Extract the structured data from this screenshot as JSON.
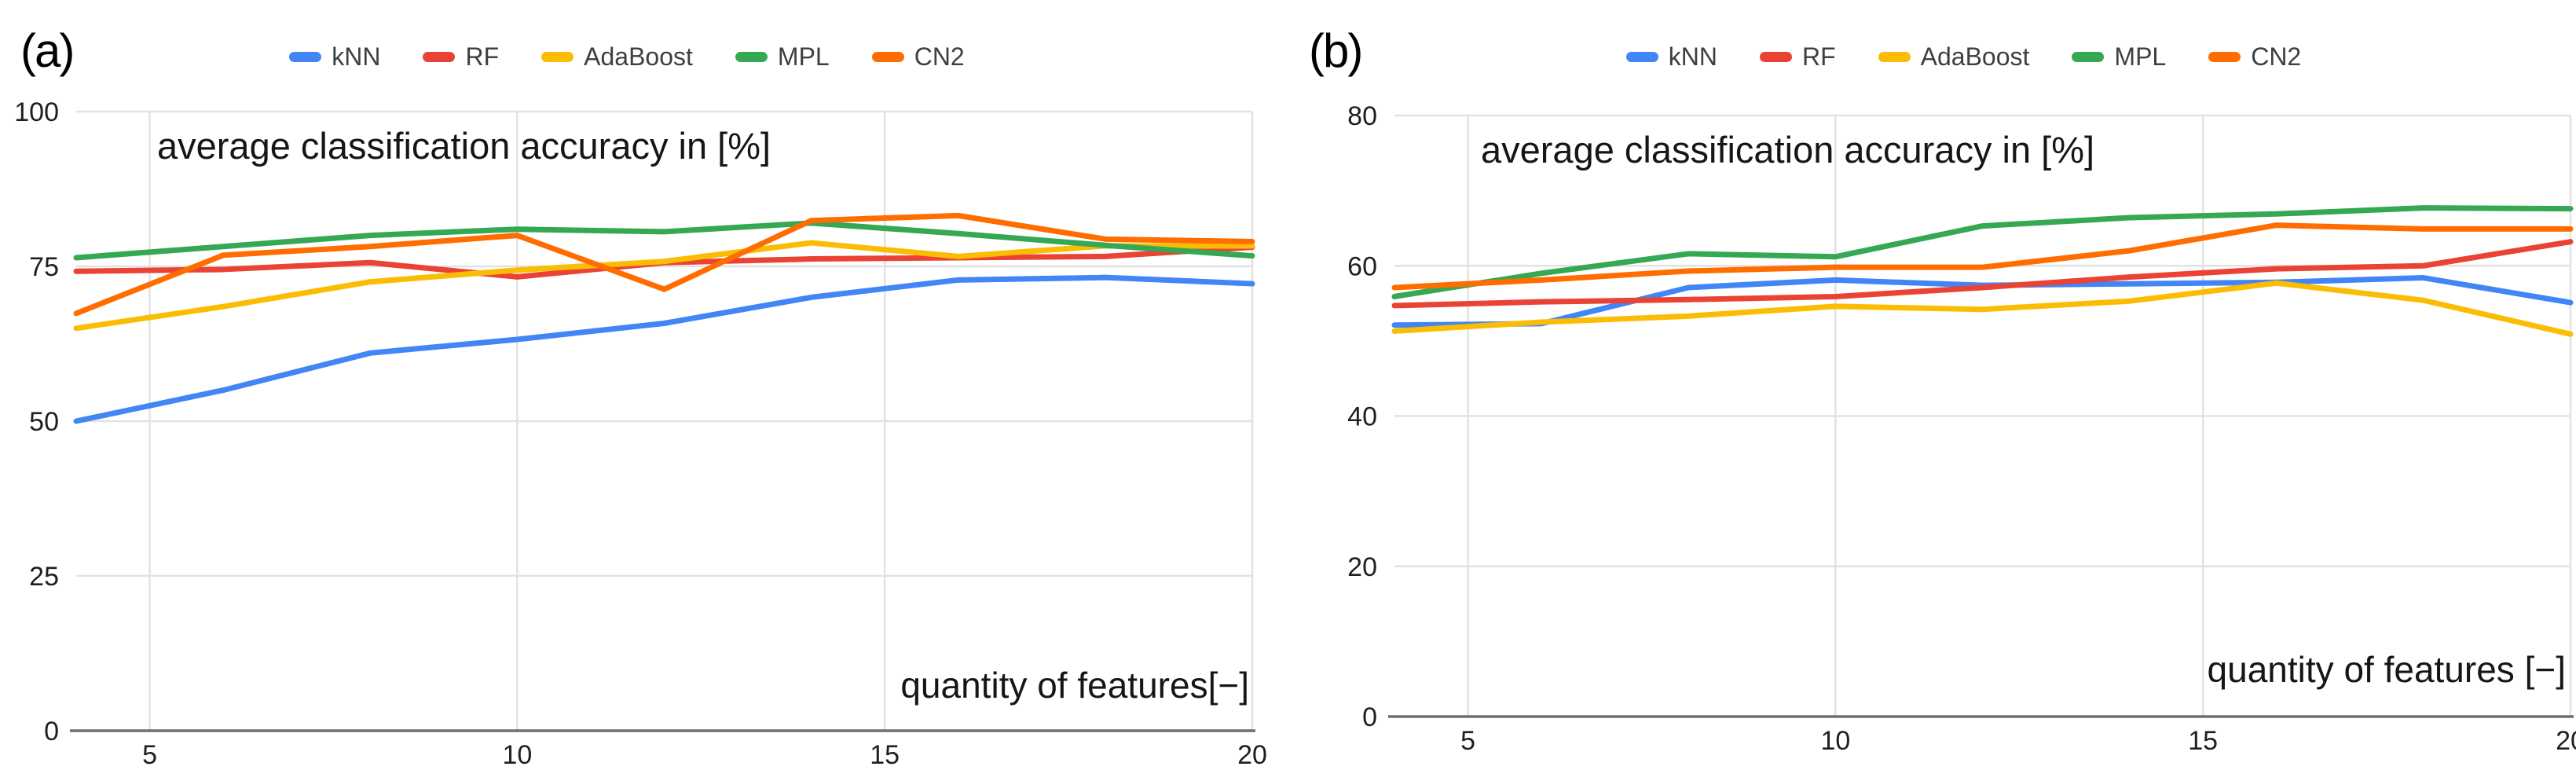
{
  "figure": {
    "background_color": "#ffffff",
    "gridline_color": "#e2e2e2",
    "baseline_color": "#6f6f6f",
    "tick_label_color": "#1f1f1f",
    "legend_text_color": "#3c4043",
    "title_text_color": "#161616"
  },
  "chart_data": [
    {
      "type": "line",
      "panel_label": "(a)",
      "title": "average classification accuracy in [%]",
      "xlabel": "quantity of features[−]",
      "ylabel": "",
      "xlim": [
        4,
        20
      ],
      "ylim": [
        0,
        100
      ],
      "x_ticks": [
        5,
        10,
        15,
        20
      ],
      "y_ticks": [
        0,
        25,
        50,
        75,
        100
      ],
      "grid": true,
      "legend_position": "top",
      "x": [
        4,
        6,
        8,
        10,
        12,
        14,
        16,
        18,
        20
      ],
      "series": [
        {
          "name": "kNN",
          "color": "#4285F4",
          "values": [
            50,
            55,
            61,
            63.2,
            65.8,
            70,
            72.8,
            73.2,
            72.2
          ]
        },
        {
          "name": "RF",
          "color": "#EA4335",
          "values": [
            74.2,
            74.5,
            75.6,
            73.3,
            75.6,
            76.2,
            76.4,
            76.6,
            78.1
          ]
        },
        {
          "name": "AdaBoost",
          "color": "#FBBC04",
          "values": [
            65,
            68.5,
            72.5,
            74.4,
            75.8,
            78.8,
            76.6,
            78.3,
            78.3
          ]
        },
        {
          "name": "MPL",
          "color": "#34A853",
          "values": [
            76.4,
            78.2,
            80,
            81,
            80.6,
            82,
            80.3,
            78.4,
            76.7
          ]
        },
        {
          "name": "CN2",
          "color": "#FF6D01",
          "values": [
            67.4,
            76.8,
            78.2,
            80,
            71.3,
            82.4,
            83.2,
            79.4,
            79
          ]
        }
      ]
    },
    {
      "type": "line",
      "panel_label": "(b)",
      "title": "average classification accuracy in [%]",
      "xlabel": "quantity of features [−]",
      "ylabel": "",
      "xlim": [
        4,
        20
      ],
      "ylim": [
        0,
        80
      ],
      "x_ticks": [
        5,
        10,
        15,
        20
      ],
      "y_ticks": [
        0,
        20,
        40,
        60,
        80
      ],
      "grid": true,
      "legend_position": "top",
      "x": [
        4,
        6,
        8,
        10,
        12,
        14,
        16,
        18,
        20
      ],
      "series": [
        {
          "name": "kNN",
          "color": "#4285F4",
          "values": [
            52.1,
            52.3,
            57.1,
            58.1,
            57.4,
            57.6,
            57.8,
            58.4,
            55.1
          ]
        },
        {
          "name": "RF",
          "color": "#EA4335",
          "values": [
            54.7,
            55.2,
            55.5,
            55.9,
            57.1,
            58.5,
            59.6,
            60,
            63.2
          ]
        },
        {
          "name": "AdaBoost",
          "color": "#FBBC04",
          "values": [
            51.3,
            52.5,
            53.3,
            54.6,
            54.2,
            55.3,
            57.7,
            55.4,
            50.9
          ]
        },
        {
          "name": "MPL",
          "color": "#34A853",
          "values": [
            55.9,
            59,
            61.6,
            61.2,
            65.3,
            66.4,
            66.9,
            67.7,
            67.6
          ]
        },
        {
          "name": "CN2",
          "color": "#FF6D01",
          "values": [
            57.1,
            58.1,
            59.3,
            59.8,
            59.8,
            62,
            65.4,
            64.9,
            64.9
          ]
        }
      ]
    }
  ]
}
